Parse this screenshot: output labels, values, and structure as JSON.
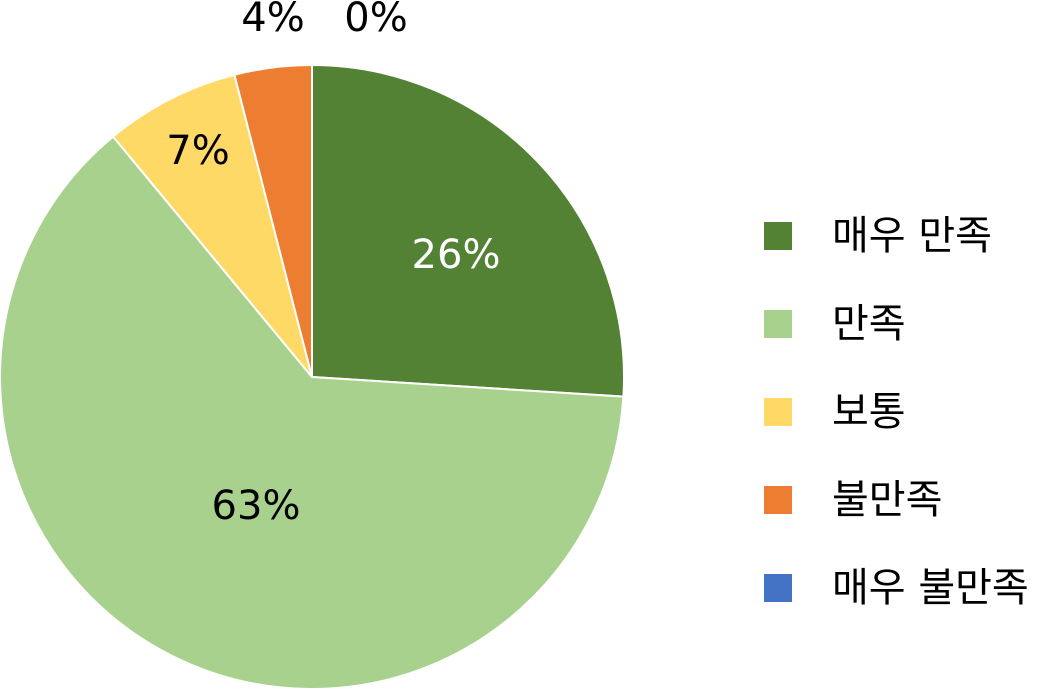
{
  "chart_data": {
    "type": "pie",
    "categories": [
      "매우 만족",
      "만족",
      "보통",
      "불만족",
      "매우 불만족"
    ],
    "values": [
      26,
      63,
      7,
      4,
      0
    ],
    "labels": [
      "26%",
      "63%",
      "7%",
      "4%",
      "0%"
    ],
    "colors": [
      "#548235",
      "#A9D18E",
      "#FFD966",
      "#ED7D31",
      "#4472C4"
    ],
    "label_colors": [
      "#FFFFFF",
      "#000000",
      "#000000",
      "#000000",
      "#000000"
    ],
    "start_angle_deg": 0,
    "direction": "clockwise",
    "legend_position": "right"
  }
}
